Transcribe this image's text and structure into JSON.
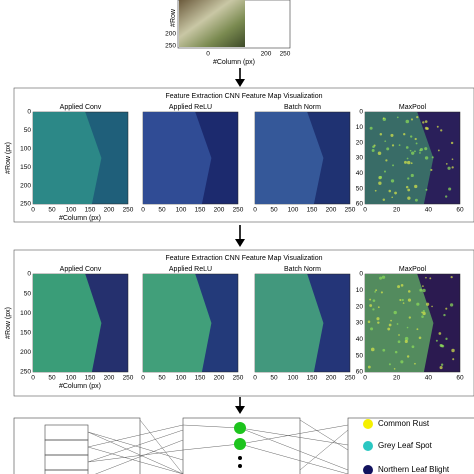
{
  "input": {
    "y_label": "#Row",
    "x_label": "#Column (px)",
    "yticks": [
      "200",
      "250"
    ],
    "xticks": [
      "0",
      "200",
      "250"
    ]
  },
  "panels": [
    {
      "title": "Feature Extraction CNN Feature Map Visualization",
      "y_label": "#Row (px)",
      "x_label": "#Column (px)",
      "maps": [
        {
          "label": "Applied Conv",
          "yticks": [
            "0",
            "50",
            "100",
            "150",
            "200",
            "250"
          ],
          "xticks": [
            "0",
            "50",
            "100",
            "150",
            "200",
            "250"
          ]
        },
        {
          "label": "Applied ReLU",
          "xticks": [
            "0",
            "50",
            "100",
            "150",
            "200",
            "250"
          ]
        },
        {
          "label": "Batch Norm",
          "xticks": [
            "0",
            "50",
            "100",
            "150",
            "200",
            "250"
          ]
        },
        {
          "label": "MaxPool",
          "yticks": [
            "0",
            "10",
            "20",
            "30",
            "40",
            "50",
            "60"
          ],
          "xticks": [
            "0",
            "20",
            "40",
            "60"
          ]
        }
      ]
    },
    {
      "title": "Feature Extraction CNN Feature Map Visualization",
      "y_label": "#Row (px)",
      "x_label": "#Column (px)",
      "maps": [
        {
          "label": "Applied Conv",
          "yticks": [
            "0",
            "50",
            "100",
            "150",
            "200",
            "250"
          ],
          "xticks": [
            "0",
            "50",
            "100",
            "150",
            "200",
            "250"
          ]
        },
        {
          "label": "Applied ReLU",
          "xticks": [
            "0",
            "50",
            "100",
            "150",
            "200",
            "250"
          ]
        },
        {
          "label": "Batch Norm",
          "xticks": [
            "0",
            "50",
            "100",
            "150",
            "200",
            "250"
          ]
        },
        {
          "label": "MaxPool",
          "yticks": [
            "0",
            "10",
            "20",
            "30",
            "40",
            "50",
            "60"
          ],
          "xticks": [
            "0",
            "20",
            "40",
            "60"
          ]
        }
      ]
    }
  ],
  "classes": [
    "Common Rust",
    "Grey Leaf Spot",
    "Northern Leaf Blight"
  ]
}
